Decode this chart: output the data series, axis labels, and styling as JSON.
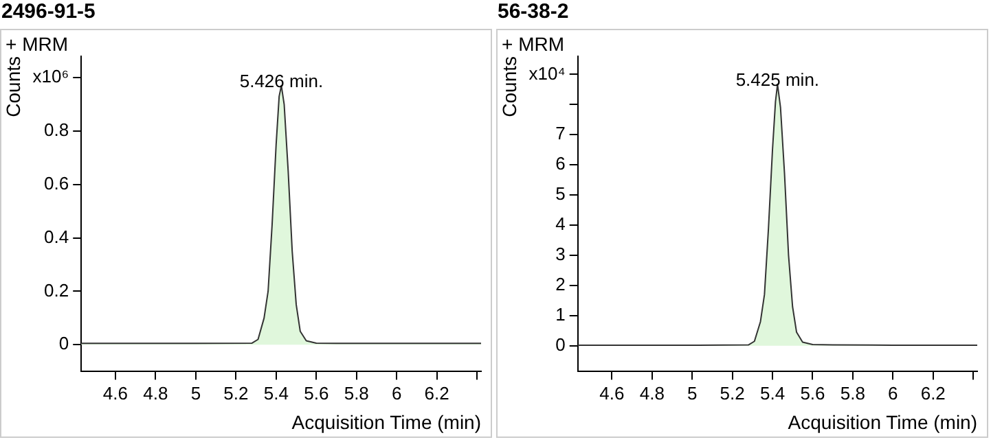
{
  "chart_data": [
    {
      "type": "area",
      "title": "2496-91-5",
      "subtitle": "+ MRM",
      "xlabel": "Acquisition Time (min)",
      "ylabel": "Counts",
      "x": [
        4.43,
        5.0,
        5.28,
        5.31,
        5.34,
        5.36,
        5.38,
        5.4,
        5.415,
        5.426,
        5.44,
        5.46,
        5.48,
        5.5,
        5.52,
        5.55,
        5.6,
        5.7,
        6.0,
        6.42
      ],
      "series": [
        {
          "color": "#e0f7dc",
          "values": [
            0.005,
            0.005,
            0.006,
            0.02,
            0.1,
            0.2,
            0.45,
            0.75,
            0.93,
            0.97,
            0.9,
            0.65,
            0.35,
            0.15,
            0.05,
            0.015,
            0.006,
            0.005,
            0.005,
            0.005
          ]
        }
      ],
      "xlim": [
        4.43,
        6.42
      ],
      "xticks": [
        4.6,
        4.8,
        5,
        5.2,
        5.4,
        5.6,
        5.8,
        6,
        6.2,
        {
          "value": 6.4,
          "label": null
        }
      ],
      "ylim": [
        -0.1,
        1.08
      ],
      "yticks": [
        0,
        0.2,
        0.4,
        0.6,
        0.8,
        {
          "value": 1,
          "label": "x10⁶"
        }
      ],
      "annotations": [
        {
          "text": "5.426 min.",
          "x": 5.426,
          "y": 0.97
        }
      ],
      "grid": false,
      "legend": false
    },
    {
      "type": "area",
      "title": "56-38-2",
      "subtitle": "+ MRM",
      "xlabel": "Acquisition Time (min)",
      "ylabel": "Counts",
      "x": [
        4.43,
        5.0,
        5.28,
        5.31,
        5.34,
        5.36,
        5.38,
        5.4,
        5.415,
        5.425,
        5.44,
        5.46,
        5.48,
        5.5,
        5.52,
        5.55,
        5.6,
        5.7,
        6.0,
        6.42
      ],
      "series": [
        {
          "color": "#e0f7dc",
          "values": [
            0.02,
            0.02,
            0.03,
            0.15,
            0.8,
            1.7,
            3.9,
            6.5,
            8.1,
            8.67,
            7.9,
            5.7,
            3.0,
            1.3,
            0.45,
            0.12,
            0.04,
            0.03,
            0.02,
            0.02
          ]
        }
      ],
      "xlim": [
        4.43,
        6.42
      ],
      "xticks": [
        4.6,
        4.8,
        5,
        5.2,
        5.4,
        5.6,
        5.8,
        6,
        6.2,
        {
          "value": 6.4,
          "label": null
        }
      ],
      "ylim": [
        -0.85,
        9.6
      ],
      "yticks": [
        0,
        1,
        2,
        3,
        4,
        5,
        6,
        7,
        {
          "value": 8,
          "label": null
        },
        {
          "value": 9,
          "label": "x10⁴"
        }
      ],
      "annotations": [
        {
          "text": "5.425 min.",
          "x": 5.425,
          "y": 8.67
        }
      ],
      "grid": false,
      "legend": false
    }
  ]
}
